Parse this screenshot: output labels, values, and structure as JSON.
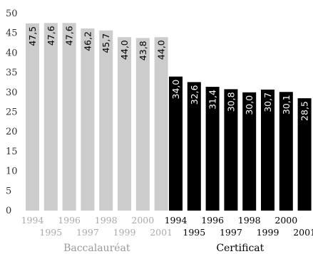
{
  "chart_data": {
    "type": "bar",
    "ylim": [
      0,
      50
    ],
    "yticks": [
      "0",
      "5",
      "10",
      "15",
      "20",
      "25",
      "30",
      "35",
      "40",
      "45",
      "50"
    ],
    "grid": false,
    "series": [
      {
        "name": "Baccalauréat",
        "color": "#cccccc",
        "label_color": "#000000",
        "categories": [
          "1994",
          "1995",
          "1996",
          "1997",
          "1998",
          "1999",
          "2000",
          "2001"
        ],
        "values": [
          47.5,
          47.6,
          47.6,
          46.2,
          45.7,
          44.0,
          43.8,
          44.0
        ],
        "labels": [
          "47,5",
          "47,6",
          "47,6",
          "46,2",
          "45,7",
          "44,0",
          "43,8",
          "44,0"
        ]
      },
      {
        "name": "Certificat",
        "color": "#000000",
        "label_color": "#ffffff",
        "categories": [
          "1994",
          "1995",
          "1996",
          "1997",
          "1998",
          "1999",
          "2000",
          "2001"
        ],
        "values": [
          34.0,
          32.6,
          31.4,
          30.8,
          30.0,
          30.7,
          30.1,
          28.5
        ],
        "labels": [
          "34,0",
          "32,6",
          "31,4",
          "30,8",
          "30,0",
          "30,7",
          "30,1",
          "28,5"
        ]
      }
    ],
    "year_colors": [
      "#aaaaaa",
      "#000000"
    ],
    "group_label_colors": [
      "#999999",
      "#000000"
    ]
  }
}
